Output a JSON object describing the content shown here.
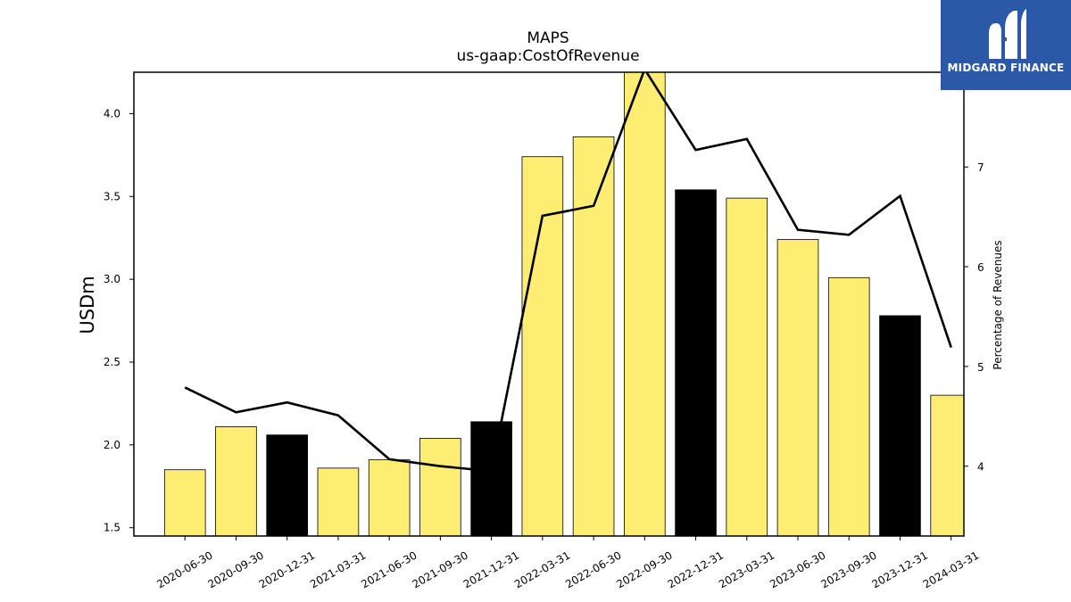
{
  "logo": {
    "text": "MIDGARD FINANCE",
    "icon": "midgard-logo-icon",
    "bg_color": "#2c58a8"
  },
  "colors": {
    "bar_default": "#fded72",
    "bar_highlight": "#000000",
    "line": "#000000"
  },
  "chart_data": {
    "type": "bar",
    "title": "MAPS",
    "subtitle": "us-gaap:CostOfRevenue",
    "ylabel": "USDm",
    "ylabel_right": "Percentage of Revenues",
    "categories": [
      "2020-06-30",
      "2020-09-30",
      "2020-12-31",
      "2021-03-31",
      "2021-06-30",
      "2021-09-30",
      "2021-12-31",
      "2022-03-31",
      "2022-06-30",
      "2022-09-30",
      "2022-12-31",
      "2023-03-31",
      "2023-06-30",
      "2023-09-30",
      "2023-12-31",
      "2024-03-31"
    ],
    "values": [
      1.85,
      2.11,
      2.06,
      1.86,
      1.91,
      2.04,
      2.14,
      3.74,
      3.86,
      4.28,
      3.54,
      3.49,
      3.24,
      3.01,
      2.78,
      2.3
    ],
    "highlight": [
      false,
      false,
      true,
      false,
      false,
      false,
      true,
      false,
      false,
      false,
      true,
      false,
      false,
      false,
      true,
      false
    ],
    "ylim": [
      1.45,
      4.25
    ],
    "yticks": [
      "1.5",
      "2.0",
      "2.5",
      "3.0",
      "3.5",
      "4.0"
    ],
    "line_series": {
      "axis": "right",
      "values": [
        4.79,
        4.54,
        4.64,
        4.51,
        4.07,
        4.0,
        3.95,
        6.51,
        6.61,
        7.98,
        7.17,
        7.28,
        6.37,
        6.32,
        6.71,
        5.19
      ]
    },
    "ylim_right": [
      3.3,
      7.95
    ],
    "yticks_right": [
      "4",
      "5",
      "6",
      "7"
    ],
    "legend": "none",
    "grid": false
  }
}
